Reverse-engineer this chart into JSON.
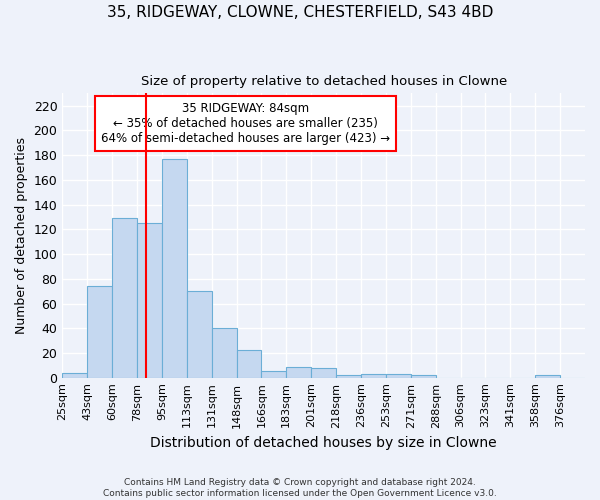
{
  "title": "35, RIDGEWAY, CLOWNE, CHESTERFIELD, S43 4BD",
  "subtitle": "Size of property relative to detached houses in Clowne",
  "xlabel": "Distribution of detached houses by size in Clowne",
  "ylabel": "Number of detached properties",
  "categories": [
    "25sqm",
    "43sqm",
    "60sqm",
    "78sqm",
    "95sqm",
    "113sqm",
    "131sqm",
    "148sqm",
    "166sqm",
    "183sqm",
    "201sqm",
    "218sqm",
    "236sqm",
    "253sqm",
    "271sqm",
    "288sqm",
    "306sqm",
    "323sqm",
    "341sqm",
    "358sqm",
    "376sqm"
  ],
  "values": [
    4,
    74,
    129,
    125,
    177,
    70,
    40,
    22,
    5,
    9,
    8,
    2,
    3,
    3,
    2,
    0,
    0,
    0,
    0,
    2,
    0
  ],
  "bar_color": "#c5d8f0",
  "bar_edgecolor": "#6baed6",
  "bar_linewidth": 0.8,
  "annotation_line_color": "red",
  "annotation_text_line1": "35 RIDGEWAY: 84sqm",
  "annotation_text_line2": "← 35% of detached houses are smaller (235)",
  "annotation_text_line3": "64% of semi-detached houses are larger (423) →",
  "annotation_box_edgecolor": "red",
  "background_color": "#eef2fa",
  "grid_color": "#ffffff",
  "ylim": [
    0,
    230
  ],
  "yticks": [
    0,
    20,
    40,
    60,
    80,
    100,
    120,
    140,
    160,
    180,
    200,
    220
  ],
  "footer_line1": "Contains HM Land Registry data © Crown copyright and database right 2024.",
  "footer_line2": "Contains public sector information licensed under the Open Government Licence v3.0."
}
